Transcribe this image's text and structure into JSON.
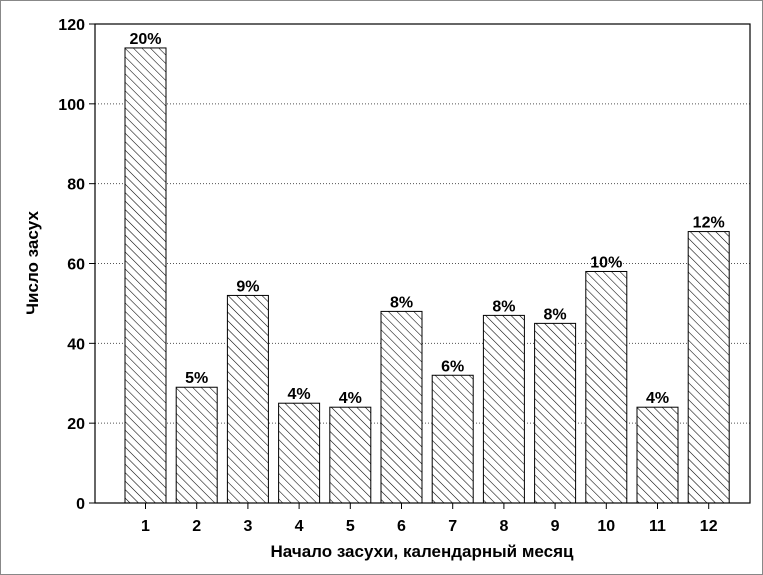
{
  "chart_data": {
    "type": "bar",
    "title": "",
    "xlabel": "Начало засухи, календарный месяц",
    "ylabel": "Число засух",
    "categories": [
      "1",
      "2",
      "3",
      "4",
      "5",
      "6",
      "7",
      "8",
      "9",
      "10",
      "11",
      "12"
    ],
    "values": [
      114,
      29,
      52,
      25,
      24,
      48,
      32,
      47,
      45,
      58,
      24,
      68
    ],
    "data_labels": [
      "20%",
      "5%",
      "9%",
      "4%",
      "4%",
      "8%",
      "6%",
      "8%",
      "8%",
      "10%",
      "4%",
      "12%"
    ],
    "ylim": [
      0,
      120
    ],
    "yticks": [
      "0",
      "20",
      "40",
      "60",
      "80",
      "100",
      "120"
    ],
    "grid": "horizontal-dotted",
    "bar_fill": "diagonal-hatch",
    "colors": {
      "bar_stroke": "#000000",
      "hatch": "#000000",
      "grid": "#555555",
      "background": "#ffffff"
    }
  }
}
